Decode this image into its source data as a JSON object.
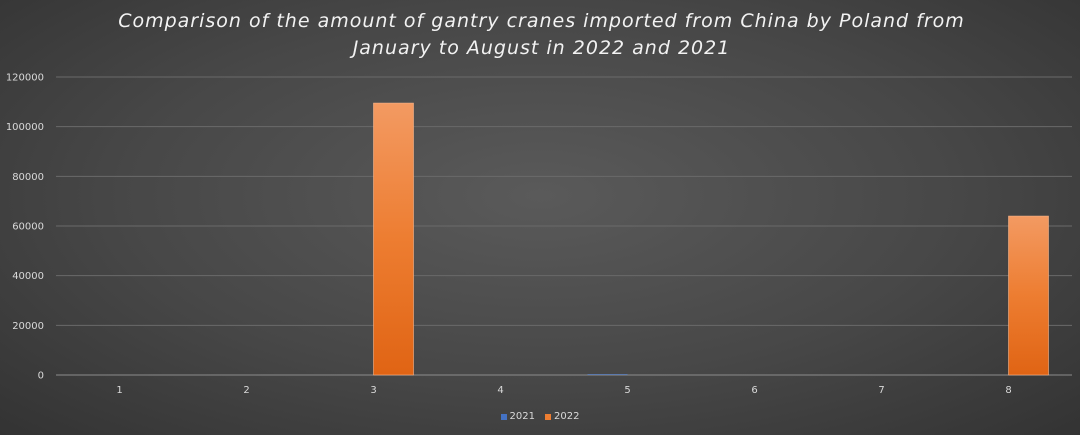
{
  "title_line1": "Comparison of the amount of gantry cranes imported from China by Poland from",
  "title_line2": "January to August in 2022 and 2021",
  "colors": {
    "series_2021": "#4472c4",
    "series_2022": "#ed7d31",
    "grid": "#6a6a6a",
    "axis_text": "#d9d9d9"
  },
  "chart_data": {
    "type": "bar",
    "title": "Comparison of the amount of gantry cranes imported from China by Poland from January to August in 2022 and 2021",
    "categories": [
      "1",
      "2",
      "3",
      "4",
      "5",
      "6",
      "7",
      "8"
    ],
    "series": [
      {
        "name": "2021",
        "values": [
          0,
          0,
          0,
          0,
          300,
          0,
          0,
          0
        ]
      },
      {
        "name": "2022",
        "values": [
          0,
          0,
          109500,
          0,
          0,
          0,
          0,
          64000
        ]
      }
    ],
    "ylim": [
      0,
      120000
    ],
    "yticks": [
      0,
      20000,
      40000,
      60000,
      80000,
      100000,
      120000
    ],
    "grid": true,
    "legend_position": "bottom"
  }
}
